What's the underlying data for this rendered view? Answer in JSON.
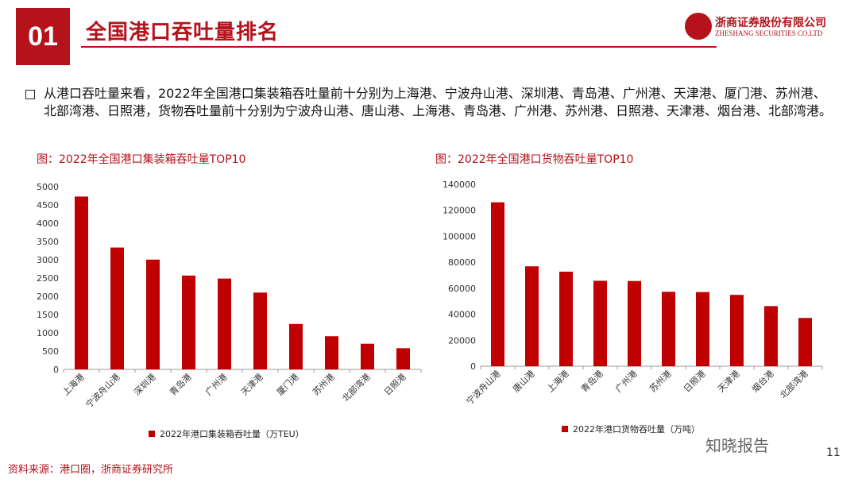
{
  "header": {
    "number": "01",
    "title": "全国港口吞吐量排名",
    "company": "浙商证券股份有限公司",
    "company_en": "ZHESHANG SECURITIES CO.LTD"
  },
  "bullet": "从港口吞吐量来看，2022年全国港口集装箱吞吐量前十分别为上海港、宁波舟山港、深圳港、青岛港、广州港、天津港、厦门港、苏州港、北部湾港、日照港，货物吞吐量前十分别为宁波舟山港、唐山港、上海港、青岛港、广州港、苏州港、日照港、天津港、烟台港、北部湾港。",
  "footer": {
    "source": "资料来源：港口圈，浙商证券研究所",
    "page": "11",
    "watermark": "知晓报告"
  },
  "colors": {
    "accent": "#b5121b",
    "bar": "#c00000"
  },
  "chart_data": [
    {
      "type": "bar",
      "title": "图：2022年全国港口集装箱吞吐量TOP10",
      "categories": [
        "上海港",
        "宁波舟山港",
        "深圳港",
        "青岛港",
        "广州港",
        "天津港",
        "厦门港",
        "苏州港",
        "北部湾港",
        "日照港"
      ],
      "values": [
        4730,
        3335,
        3004,
        2567,
        2486,
        2102,
        1243,
        908,
        702,
        580
      ],
      "ylim": [
        0,
        5000
      ],
      "yticks": [
        0,
        500,
        1000,
        1500,
        2000,
        2500,
        3000,
        3500,
        4000,
        4500,
        5000
      ],
      "legend": "2022年港口集装箱吞吐量（万TEU）"
    },
    {
      "type": "bar",
      "title": "图：2022年全国港口货物吞吐量TOP10",
      "categories": [
        "宁波舟山港",
        "唐山港",
        "上海港",
        "青岛港",
        "广州港",
        "苏州港",
        "日照港",
        "天津港",
        "烟台港",
        "北部湾港"
      ],
      "values": [
        126134,
        76887,
        72777,
        65754,
        65592,
        57276,
        57057,
        54902,
        46257,
        37134
      ],
      "ylim": [
        0,
        140000
      ],
      "yticks": [
        0,
        20000,
        40000,
        60000,
        80000,
        100000,
        120000,
        140000
      ],
      "legend": "2022年港口货物吞吐量（万吨）"
    }
  ]
}
